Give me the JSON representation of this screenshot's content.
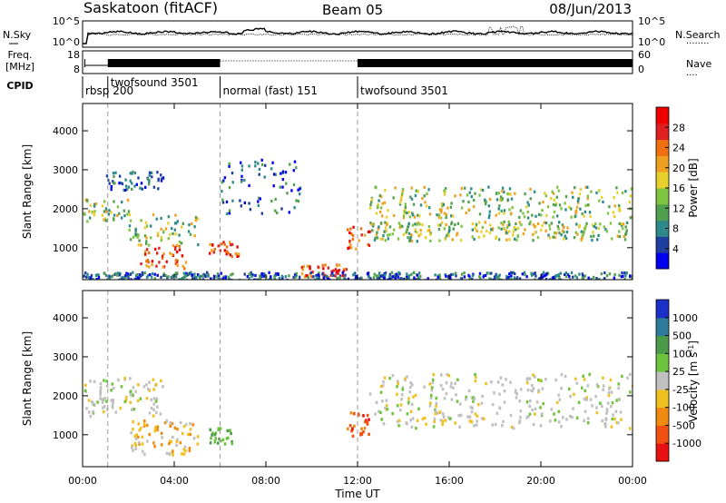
{
  "header": {
    "station": "Saskatoon (fitACF)",
    "beam": "Beam 05",
    "date": "08/Jun/2013"
  },
  "strip_noise": {
    "left_label": "N.Sky",
    "left_ticks": [
      "10^5",
      "10^0"
    ],
    "right_ticks": [
      "10^5",
      "10^0"
    ],
    "right_label": "N.Search",
    "right_line_marker": "........"
  },
  "strip_freq": {
    "left_label_top": "Freq.",
    "left_label_bottom": "[MHz]",
    "left_ticks": [
      "18",
      "8"
    ],
    "right_ticks": [
      "60",
      "0"
    ],
    "right_label": "Nave",
    "right_line_marker": "....",
    "cpid_label": "CPID"
  },
  "cpid_segments": [
    {
      "label": "rbsp 200",
      "start_ut": 0.0
    },
    {
      "label": "twofsound 3501",
      "start_ut": 1.1
    },
    {
      "label": "normal (fast) 151",
      "start_ut": 6.0
    },
    {
      "label": "twofsound 3501",
      "start_ut": 12.0
    }
  ],
  "x_axis": {
    "label": "Time UT",
    "ticks": [
      "00:00",
      "04:00",
      "08:00",
      "12:00",
      "16:00",
      "20:00",
      "00:00"
    ],
    "range_hours": [
      0,
      24
    ]
  },
  "y_axis": {
    "label": "Slant Range [km]",
    "ticks": [
      "1000",
      "2000",
      "3000",
      "4000"
    ],
    "range_km": [
      180,
      4700
    ]
  },
  "power_colorbar": {
    "label": "Power [dB]",
    "ticks": [
      "28",
      "24",
      "20",
      "16",
      "12",
      "8",
      "4"
    ],
    "colors": [
      "#0000ee",
      "#1e3fa0",
      "#2e8a8a",
      "#52a04f",
      "#7ec641",
      "#e8d02c",
      "#f0a020",
      "#f07010",
      "#e02020",
      "#ee0000"
    ]
  },
  "velocity_colorbar": {
    "label": "Velocity  [m s",
    "label_sup": "-1",
    "label_end": "]",
    "ticks": [
      "1000",
      "500",
      "100",
      "25",
      "-25",
      "-100",
      "-500",
      "-1000"
    ],
    "colors": [
      "#1a30c8",
      "#2e7a9a",
      "#4a9a4a",
      "#6cc43c",
      "#c0c0c0",
      "#f0c020",
      "#f08a10",
      "#f05010",
      "#e81010"
    ]
  },
  "chart_data": {
    "type": "heatmap",
    "title": "Saskatoon (fitACF)",
    "x_label": "Time UT",
    "y_label": "Slant Range [km]",
    "xlim_hours": [
      0,
      24
    ],
    "ylim_km": [
      180,
      4700
    ],
    "vertical_markers_ut": [
      1.1,
      6.0,
      12.0
    ],
    "power_features": [
      {
        "t0": 0.0,
        "t1": 2.0,
        "r0": 1700,
        "r1": 2300,
        "level": "mid"
      },
      {
        "t0": 1.0,
        "t1": 3.5,
        "r0": 2500,
        "r1": 3000,
        "level": "low"
      },
      {
        "t0": 2.0,
        "t1": 5.0,
        "r0": 1100,
        "r1": 1900,
        "level": "mid"
      },
      {
        "t0": 2.5,
        "t1": 4.5,
        "r0": 500,
        "r1": 1100,
        "level": "high"
      },
      {
        "t0": 5.5,
        "t1": 6.8,
        "r0": 800,
        "r1": 1200,
        "level": "high"
      },
      {
        "t0": 6.0,
        "t1": 9.5,
        "r0": 1900,
        "r1": 3300,
        "level": "low"
      },
      {
        "t0": 9.5,
        "t1": 11.5,
        "r0": 250,
        "r1": 600,
        "level": "high"
      },
      {
        "t0": 11.5,
        "t1": 12.5,
        "r0": 1000,
        "r1": 1600,
        "level": "high"
      },
      {
        "t0": 12.5,
        "t1": 24.0,
        "r0": 1800,
        "r1": 2600,
        "level": "mid"
      },
      {
        "t0": 12.5,
        "t1": 24.0,
        "r0": 1200,
        "r1": 1700,
        "level": "mid"
      },
      {
        "t0": 0.0,
        "t1": 24.0,
        "r0": 180,
        "r1": 400,
        "level": "low"
      }
    ],
    "velocity_features": [
      {
        "t0": 0.0,
        "t1": 3.5,
        "r0": 1500,
        "r1": 2500,
        "class": "near-zero"
      },
      {
        "t0": 2.0,
        "t1": 5.0,
        "r0": 500,
        "r1": 1400,
        "class": "negative"
      },
      {
        "t0": 5.5,
        "t1": 6.5,
        "r0": 800,
        "r1": 1200,
        "class": "positive"
      },
      {
        "t0": 11.5,
        "t1": 12.5,
        "r0": 1000,
        "r1": 1600,
        "class": "strong-negative"
      },
      {
        "t0": 12.5,
        "t1": 24.0,
        "r0": 1200,
        "r1": 2600,
        "class": "near-zero"
      }
    ]
  }
}
